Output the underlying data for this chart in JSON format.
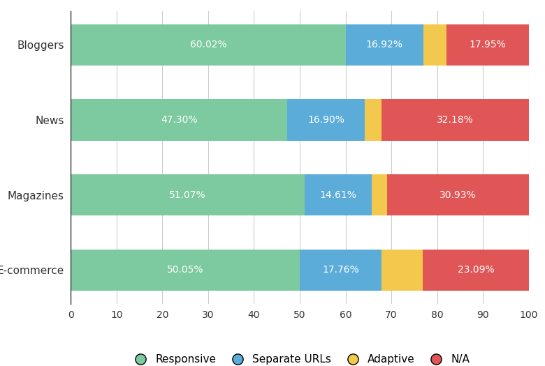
{
  "categories": [
    "Bloggers",
    "News",
    "Magazines",
    "E-commerce"
  ],
  "series": {
    "Responsive": [
      60.02,
      47.3,
      51.07,
      50.05
    ],
    "Separate URLs": [
      16.92,
      16.9,
      14.61,
      17.76
    ],
    "Adaptive": [
      5.11,
      3.62,
      3.39,
      9.1
    ],
    "N/A": [
      17.95,
      32.18,
      30.93,
      23.09
    ]
  },
  "labels": {
    "Responsive": [
      "60.02%",
      "47.30%",
      "51.07%",
      "50.05%"
    ],
    "Separate URLs": [
      "16.92%",
      "16.90%",
      "14.61%",
      "17.76%"
    ],
    "Adaptive": [
      "",
      "",
      "",
      ""
    ],
    "N/A": [
      "17.95%",
      "32.18%",
      "30.93%",
      "23.09%"
    ]
  },
  "colors": {
    "Responsive": "#7DC9A0",
    "Separate URLs": "#5BACD9",
    "Adaptive": "#F2C94C",
    "N/A": "#E05555"
  },
  "legend_order": [
    "Responsive",
    "Separate URLs",
    "Adaptive",
    "N/A"
  ],
  "xlim": [
    0,
    100
  ],
  "xticks": [
    0,
    10,
    20,
    30,
    40,
    50,
    60,
    70,
    80,
    90,
    100
  ],
  "background_color": "#ffffff",
  "bar_height": 0.55,
  "figsize": [
    7.8,
    5.25
  ],
  "dpi": 100,
  "label_fontsize": 10,
  "legend_fontsize": 11,
  "tick_fontsize": 10,
  "ytick_fontsize": 11
}
